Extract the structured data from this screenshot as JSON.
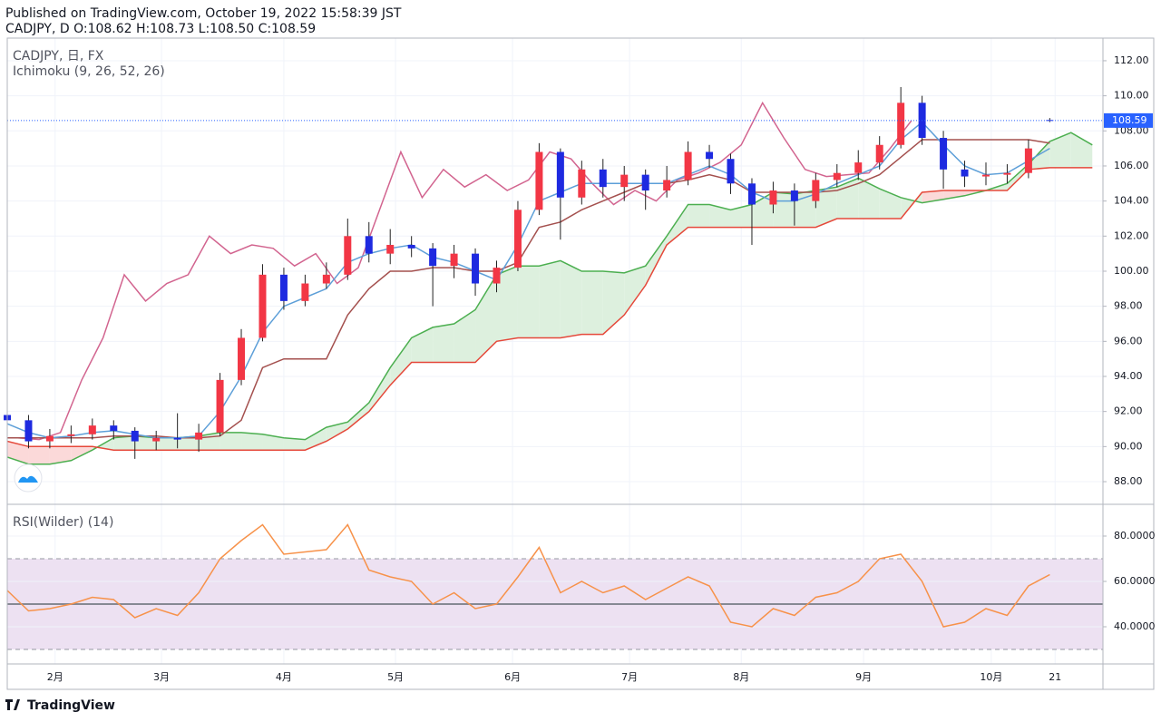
{
  "header": {
    "published": "Published on TradingView.com, October 19, 2022 15:58:39 JST",
    "ohlc": "CADJPY, D O:108.62 H:108.73 L:108.50 C:108.59"
  },
  "footer": {
    "logo": "TradingView"
  },
  "chart_data": [
    {
      "type": "candlestick",
      "title": "CADJPY, 日, FX",
      "subtitle": "Ichimoku (9, 26, 52, 26)",
      "x": [
        0,
        4,
        8,
        12,
        16,
        20,
        24,
        28,
        32,
        36,
        40,
        44,
        48,
        52,
        56,
        60,
        64,
        68,
        72,
        76,
        80,
        84,
        88,
        92,
        96,
        100,
        104,
        108,
        112,
        116,
        120,
        124,
        128,
        132,
        136,
        140,
        144,
        148,
        152,
        156,
        160,
        164,
        168,
        172,
        176,
        180,
        184,
        188,
        192,
        196
      ],
      "open": [
        91.8,
        91.5,
        90.3,
        90.6,
        90.7,
        91.2,
        90.9,
        90.3,
        90.5,
        90.4,
        90.8,
        93.8,
        96.2,
        99.8,
        98.3,
        99.3,
        99.8,
        102.0,
        101.0,
        101.5,
        101.3,
        100.3,
        101.0,
        99.3,
        100.2,
        103.5,
        106.8,
        104.2,
        105.8,
        104.8,
        105.5,
        104.6,
        105.2,
        106.8,
        106.4,
        105.0,
        103.8,
        104.6,
        104.0,
        105.2,
        105.6,
        106.2,
        107.2,
        109.6,
        107.6,
        105.8,
        105.4,
        105.5,
        105.6,
        108.62
      ],
      "high": [
        92.2,
        91.8,
        91.0,
        91.2,
        91.6,
        91.5,
        91.1,
        90.9,
        91.9,
        91.3,
        94.2,
        96.7,
        100.4,
        100.2,
        99.8,
        100.5,
        103.0,
        102.8,
        102.4,
        102.0,
        101.6,
        101.5,
        101.3,
        100.6,
        104.0,
        107.3,
        107.0,
        106.3,
        106.4,
        106.0,
        105.8,
        106.0,
        107.4,
        107.2,
        106.7,
        105.3,
        105.1,
        105.0,
        105.6,
        106.1,
        106.9,
        107.7,
        110.5,
        110.0,
        108.0,
        106.3,
        106.2,
        106.1,
        107.5,
        108.73
      ],
      "low": [
        91.0,
        89.9,
        89.9,
        90.2,
        90.4,
        90.4,
        89.3,
        89.8,
        89.9,
        89.7,
        90.6,
        93.5,
        96.0,
        97.8,
        98.0,
        99.0,
        99.5,
        100.5,
        100.4,
        100.8,
        98.0,
        99.6,
        98.6,
        98.8,
        100.0,
        103.2,
        101.8,
        103.8,
        104.2,
        104.0,
        103.5,
        104.2,
        104.9,
        105.9,
        104.4,
        101.5,
        103.3,
        102.6,
        103.6,
        104.8,
        105.2,
        105.8,
        107.0,
        107.2,
        104.7,
        104.8,
        104.9,
        105.0,
        105.3,
        108.5
      ],
      "close": [
        91.5,
        90.3,
        90.6,
        90.7,
        91.2,
        90.9,
        90.3,
        90.5,
        90.4,
        90.8,
        93.8,
        96.2,
        99.8,
        98.3,
        99.3,
        99.8,
        102.0,
        101.0,
        101.5,
        101.3,
        100.3,
        101.0,
        99.3,
        100.2,
        103.5,
        106.8,
        104.2,
        105.8,
        104.8,
        105.5,
        104.6,
        105.2,
        106.8,
        106.4,
        105.0,
        103.8,
        104.6,
        104.0,
        105.2,
        105.6,
        106.2,
        107.2,
        109.6,
        107.6,
        105.8,
        105.4,
        105.5,
        105.6,
        107.0,
        108.59
      ],
      "up_color": "#f23645",
      "down_color": "#1e2ae0",
      "tenkan": {
        "color": "#5d9fd8",
        "x": [
          0,
          4,
          8,
          12,
          16,
          20,
          24,
          28,
          32,
          36,
          40,
          44,
          48,
          52,
          56,
          60,
          64,
          68,
          72,
          76,
          80,
          84,
          88,
          92,
          96,
          100,
          104,
          108,
          112,
          116,
          120,
          124,
          128,
          132,
          136,
          140,
          144,
          148,
          152,
          156,
          160,
          164,
          168,
          172,
          176,
          180,
          184,
          188,
          192,
          196
        ],
        "values": [
          91.3,
          90.8,
          90.5,
          90.6,
          90.8,
          90.9,
          90.7,
          90.5,
          90.5,
          90.6,
          92.0,
          94.0,
          96.5,
          98.0,
          98.5,
          99.0,
          100.5,
          101.0,
          101.3,
          101.5,
          100.8,
          100.5,
          100.0,
          99.5,
          101.5,
          104.0,
          104.5,
          105.0,
          105.0,
          105.0,
          105.0,
          105.0,
          105.5,
          106.0,
          105.5,
          104.5,
          104.0,
          104.0,
          104.4,
          105.0,
          105.5,
          106.0,
          107.5,
          108.5,
          107.2,
          106.0,
          105.5,
          105.6,
          106.3,
          107.0
        ]
      },
      "kijun": {
        "color": "#a4504e",
        "x": [
          0,
          4,
          8,
          12,
          16,
          20,
          24,
          28,
          32,
          36,
          40,
          44,
          48,
          52,
          56,
          60,
          64,
          68,
          72,
          76,
          80,
          84,
          88,
          92,
          96,
          100,
          104,
          108,
          112,
          116,
          120,
          124,
          128,
          132,
          136,
          140,
          144,
          148,
          152,
          156,
          160,
          164,
          168,
          172,
          176,
          180,
          184,
          188,
          192,
          196
        ],
        "values": [
          90.5,
          90.5,
          90.5,
          90.5,
          90.5,
          90.6,
          90.6,
          90.6,
          90.5,
          90.5,
          90.6,
          91.5,
          94.5,
          95.0,
          95.0,
          95.0,
          97.5,
          99.0,
          100.0,
          100.0,
          100.2,
          100.2,
          100.0,
          100.0,
          100.5,
          102.5,
          102.8,
          103.5,
          104.0,
          104.5,
          105.0,
          105.0,
          105.2,
          105.5,
          105.2,
          104.5,
          104.5,
          104.5,
          104.5,
          104.6,
          105.0,
          105.5,
          106.5,
          107.5,
          107.5,
          107.5,
          107.5,
          107.5,
          107.5,
          107.3
        ]
      },
      "chikou": {
        "color": "#d2648f",
        "x": [
          2,
          6,
          10,
          14,
          18,
          22,
          26,
          30,
          34,
          38,
          42,
          46,
          50,
          54,
          58,
          62,
          66,
          70,
          74,
          78,
          82,
          86,
          90,
          94,
          98,
          102,
          106,
          110,
          114,
          118,
          122,
          126,
          130,
          134,
          138,
          142,
          146,
          150,
          154,
          158,
          162,
          166,
          170
        ],
        "values": [
          90.5,
          90.4,
          90.8,
          93.8,
          96.2,
          99.8,
          98.3,
          99.3,
          99.8,
          102.0,
          101.0,
          101.5,
          101.3,
          100.3,
          101.0,
          99.3,
          100.2,
          103.5,
          106.8,
          104.2,
          105.8,
          104.8,
          105.5,
          104.6,
          105.2,
          106.8,
          106.4,
          105.0,
          103.8,
          104.6,
          104.0,
          105.2,
          105.6,
          106.2,
          107.2,
          109.6,
          107.6,
          105.8,
          105.4,
          105.5,
          105.6,
          107.0,
          108.59
        ]
      },
      "span_a": {
        "color": "#4caf50",
        "x": [
          0,
          4,
          8,
          12,
          16,
          20,
          24,
          28,
          32,
          36,
          40,
          44,
          48,
          52,
          56,
          60,
          64,
          68,
          72,
          76,
          80,
          84,
          88,
          92,
          96,
          100,
          104,
          108,
          112,
          116,
          120,
          124,
          128,
          132,
          136,
          140,
          144,
          148,
          152,
          156,
          160,
          164,
          168,
          172,
          176,
          180,
          184,
          188,
          192,
          196,
          200,
          204
        ],
        "values": [
          89.4,
          89.0,
          89.0,
          89.2,
          89.8,
          90.5,
          90.6,
          90.5,
          90.5,
          90.6,
          90.8,
          90.8,
          90.7,
          90.5,
          90.4,
          91.1,
          91.4,
          92.5,
          94.5,
          96.2,
          96.8,
          97.0,
          97.8,
          99.8,
          100.3,
          100.3,
          100.6,
          100.0,
          100.0,
          99.9,
          100.3,
          102.0,
          103.8,
          103.8,
          103.5,
          103.8,
          104.5,
          104.4,
          104.6,
          104.8,
          105.3,
          104.7,
          104.2,
          103.9,
          104.1,
          104.3,
          104.6,
          105.0,
          106.1,
          107.4,
          107.9,
          107.2
        ]
      },
      "span_b": {
        "color": "#e5483a",
        "x": [
          0,
          4,
          8,
          12,
          16,
          20,
          24,
          28,
          32,
          36,
          40,
          44,
          48,
          52,
          56,
          60,
          64,
          68,
          72,
          76,
          80,
          84,
          88,
          92,
          96,
          100,
          104,
          108,
          112,
          116,
          120,
          124,
          128,
          132,
          136,
          140,
          144,
          148,
          152,
          156,
          160,
          164,
          168,
          172,
          176,
          180,
          184,
          188,
          192,
          196,
          200,
          204
        ],
        "values": [
          90.3,
          90.0,
          90.0,
          90.0,
          90.0,
          89.8,
          89.8,
          89.8,
          89.8,
          89.8,
          89.8,
          89.8,
          89.8,
          89.8,
          89.8,
          90.3,
          91.0,
          92.0,
          93.5,
          94.8,
          94.8,
          94.8,
          94.8,
          96.0,
          96.2,
          96.2,
          96.2,
          96.4,
          96.4,
          97.5,
          99.2,
          101.5,
          102.5,
          102.5,
          102.5,
          102.5,
          102.5,
          102.5,
          102.5,
          103.0,
          103.0,
          103.0,
          103.0,
          104.5,
          104.6,
          104.6,
          104.6,
          104.6,
          105.8,
          105.9,
          105.9,
          105.9
        ]
      },
      "cloud_up_color": "#ddf0de",
      "cloud_down_color": "#fbd9d9",
      "last_price": 108.59,
      "last_price_color": "#2962ff",
      "xlim": [
        0,
        206
      ],
      "xticks": [
        {
          "value": 9,
          "label": "2月"
        },
        {
          "value": 29,
          "label": "3月"
        },
        {
          "value": 52,
          "label": "4月"
        },
        {
          "value": 73,
          "label": "5月"
        },
        {
          "value": 95,
          "label": "6月"
        },
        {
          "value": 117,
          "label": "7月"
        },
        {
          "value": 138,
          "label": "8月"
        },
        {
          "value": 161,
          "label": "9月"
        },
        {
          "value": 185,
          "label": "10月"
        },
        {
          "value": 197,
          "label": "21"
        }
      ],
      "ylim": [
        86.76,
        113.29
      ],
      "yticks": [
        {
          "value": 88,
          "label": "88.00"
        },
        {
          "value": 90,
          "label": "90.00"
        },
        {
          "value": 92,
          "label": "92.00"
        },
        {
          "value": 94,
          "label": "94.00"
        },
        {
          "value": 96,
          "label": "96.00"
        },
        {
          "value": 98,
          "label": "98.00"
        },
        {
          "value": 100,
          "label": "100.00"
        },
        {
          "value": 102,
          "label": "102.00"
        },
        {
          "value": 104,
          "label": "104.00"
        },
        {
          "value": 106,
          "label": "106.00"
        },
        {
          "value": 108,
          "label": "108.00"
        },
        {
          "value": 110,
          "label": "110.00"
        },
        {
          "value": 112,
          "label": "112.00"
        }
      ],
      "grid": true
    },
    {
      "type": "line",
      "title": "RSI(Wilder) (14)",
      "color": "#f7924a",
      "x": [
        0,
        4,
        8,
        12,
        16,
        20,
        24,
        28,
        32,
        36,
        40,
        44,
        48,
        52,
        56,
        60,
        64,
        68,
        72,
        76,
        80,
        84,
        88,
        92,
        96,
        100,
        104,
        108,
        112,
        116,
        120,
        124,
        128,
        132,
        136,
        140,
        144,
        148,
        152,
        156,
        160,
        164,
        168,
        172,
        176,
        180,
        184,
        188,
        192,
        196
      ],
      "values": [
        56,
        47,
        48,
        50,
        53,
        52,
        44,
        48,
        45,
        55,
        70,
        78,
        85,
        72,
        73,
        74,
        85,
        65,
        62,
        60,
        50,
        55,
        48,
        50,
        62,
        75,
        55,
        60,
        55,
        58,
        52,
        57,
        62,
        58,
        42,
        40,
        48,
        45,
        53,
        55,
        60,
        70,
        72,
        60,
        40,
        42,
        48,
        45,
        58,
        63
      ],
      "xlim": [
        0,
        206
      ],
      "ylim": [
        23.6,
        93.6
      ],
      "yticks": [
        {
          "value": 40,
          "label": "40.0000"
        },
        {
          "value": 60,
          "label": "60.0000"
        },
        {
          "value": 80,
          "label": "80.0000"
        }
      ],
      "bands": [
        30,
        70
      ],
      "band_color": "#ede1f2",
      "midline": 50,
      "grid": true
    }
  ]
}
